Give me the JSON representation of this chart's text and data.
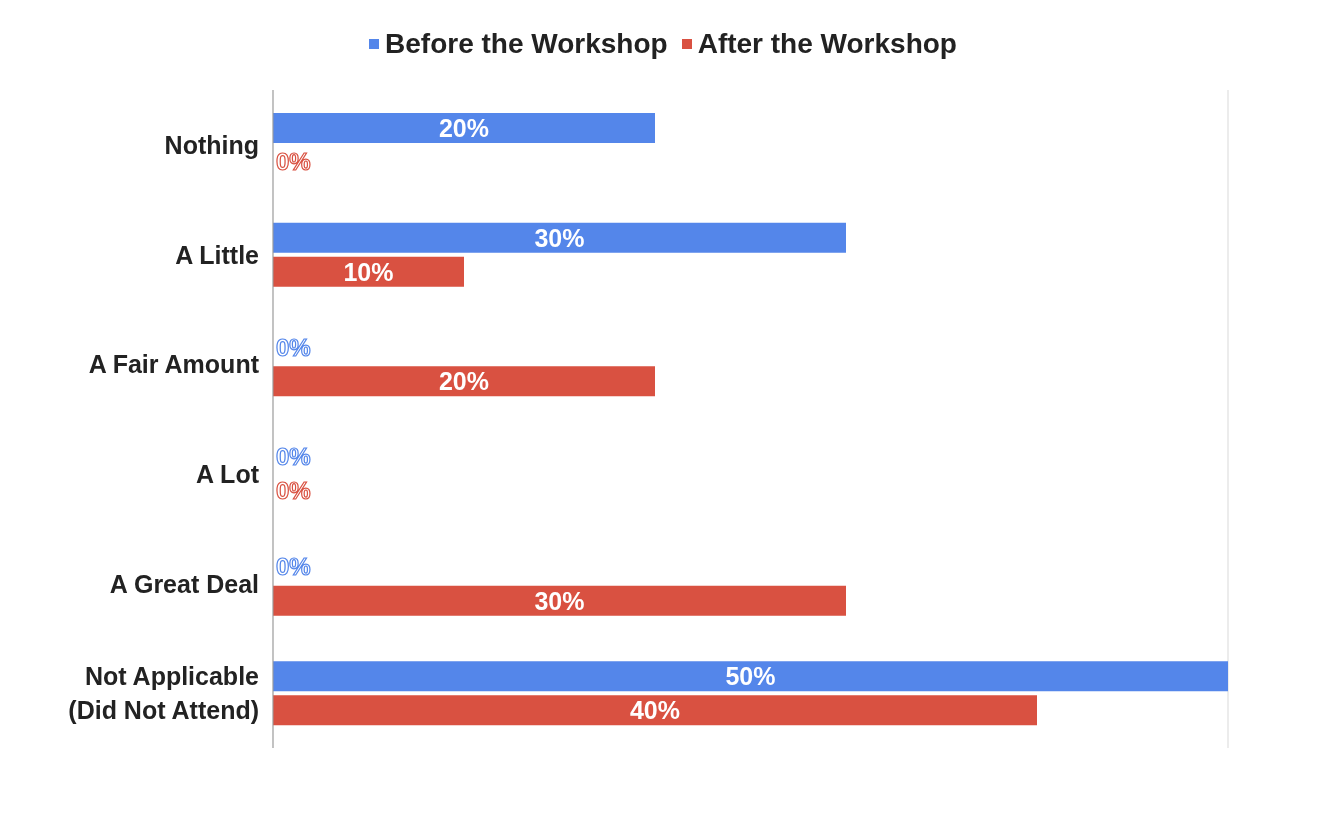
{
  "chart_data": {
    "type": "bar",
    "orientation": "horizontal",
    "categories": [
      "Nothing",
      "A Little",
      "A Fair Amount",
      "A Lot",
      "A Great Deal",
      "Not Applicable (Did Not Attend)"
    ],
    "series": [
      {
        "name": "Before the Workshop",
        "color": "#5486ea",
        "values": [
          20,
          30,
          0,
          0,
          0,
          50
        ],
        "value_labels": [
          "20%",
          "30%",
          "0%",
          "0%",
          "0%",
          "50%"
        ]
      },
      {
        "name": "After the Workshop",
        "color": "#d95141",
        "values": [
          0,
          10,
          20,
          0,
          30,
          40
        ],
        "value_labels": [
          "0%",
          "10%",
          "20%",
          "0%",
          "30%",
          "40%"
        ]
      }
    ],
    "xlim": [
      0,
      50
    ],
    "tick_labels": "y",
    "grid": "x",
    "legend": "top"
  }
}
